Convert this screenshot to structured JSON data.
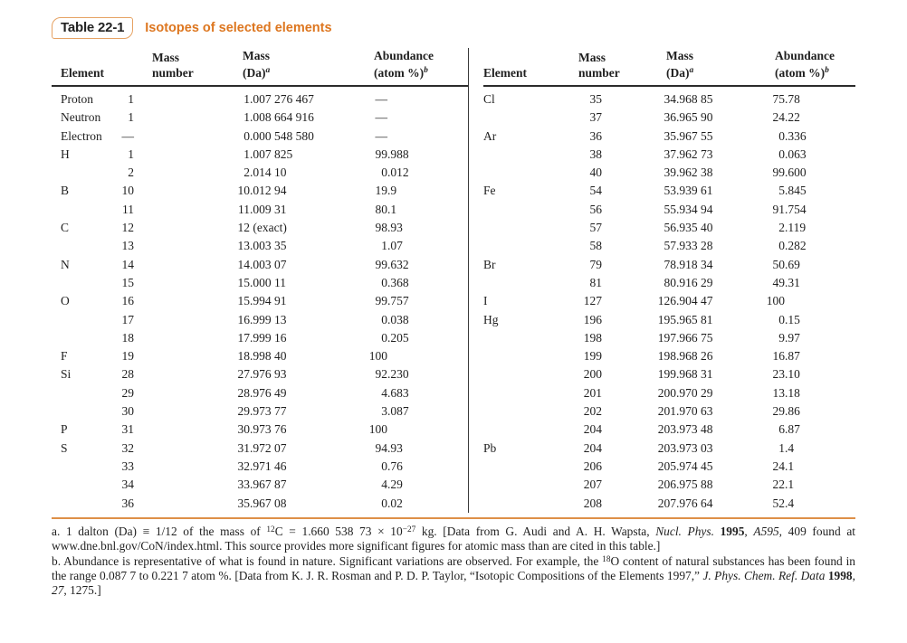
{
  "title": {
    "box_label": "Table 22-1",
    "caption": "Isotopes of selected elements"
  },
  "colors": {
    "caption_orange": "#dd761f",
    "box_border_orange": "#e6a263",
    "footnote_rule_orange": "#de9048",
    "header_rule_black": "#2b2b2b"
  },
  "columns": {
    "element": {
      "line1": "",
      "line2": "Element"
    },
    "mass_number": {
      "line1": "Mass",
      "line2": "number"
    },
    "mass_da": {
      "line1": "Mass",
      "line2": "(Da)",
      "sup": "a"
    },
    "abundance": {
      "line1": "Abundance",
      "line2": "(atom %)",
      "sup": "b"
    }
  },
  "left_rows": [
    [
      "Proton",
      "1",
      "1.007 276 467",
      "—"
    ],
    [
      "Neutron",
      "1",
      "1.008 664 916",
      "—"
    ],
    [
      "Electron",
      "—",
      "0.000 548 580",
      "—"
    ],
    [
      "H",
      "1",
      "1.007 825",
      "99.988"
    ],
    [
      "",
      "2",
      "2.014 10",
      "0.012"
    ],
    [
      "B",
      "10",
      "10.012 94",
      "19.9"
    ],
    [
      "",
      "11",
      "11.009 31",
      "80.1"
    ],
    [
      "C",
      "12",
      "12 (exact)",
      "98.93"
    ],
    [
      "",
      "13",
      "13.003 35",
      "1.07"
    ],
    [
      "N",
      "14",
      "14.003 07",
      "99.632"
    ],
    [
      "",
      "15",
      "15.000 11",
      "0.368"
    ],
    [
      "O",
      "16",
      "15.994 91",
      "99.757"
    ],
    [
      "",
      "17",
      "16.999 13",
      "0.038"
    ],
    [
      "",
      "18",
      "17.999 16",
      "0.205"
    ],
    [
      "F",
      "19",
      "18.998 40",
      "100"
    ],
    [
      "Si",
      "28",
      "27.976 93",
      "92.230"
    ],
    [
      "",
      "29",
      "28.976 49",
      "4.683"
    ],
    [
      "",
      "30",
      "29.973 77",
      "3.087"
    ],
    [
      "P",
      "31",
      "30.973 76",
      "100"
    ],
    [
      "S",
      "32",
      "31.972 07",
      "94.93"
    ],
    [
      "",
      "33",
      "32.971 46",
      "0.76"
    ],
    [
      "",
      "34",
      "33.967 87",
      "4.29"
    ],
    [
      "",
      "36",
      "35.967 08",
      "0.02"
    ]
  ],
  "right_rows": [
    [
      "Cl",
      "35",
      "34.968 85",
      "75.78"
    ],
    [
      "",
      "37",
      "36.965 90",
      "24.22"
    ],
    [
      "Ar",
      "36",
      "35.967 55",
      "0.336"
    ],
    [
      "",
      "38",
      "37.962 73",
      "0.063"
    ],
    [
      "",
      "40",
      "39.962 38",
      "99.600"
    ],
    [
      "Fe",
      "54",
      "53.939 61",
      "5.845"
    ],
    [
      "",
      "56",
      "55.934 94",
      "91.754"
    ],
    [
      "",
      "57",
      "56.935 40",
      "2.119"
    ],
    [
      "",
      "58",
      "57.933 28",
      "0.282"
    ],
    [
      "Br",
      "79",
      "78.918 34",
      "50.69"
    ],
    [
      "",
      "81",
      "80.916 29",
      "49.31"
    ],
    [
      "I",
      "127",
      "126.904 47",
      "100"
    ],
    [
      "Hg",
      "196",
      "195.965 81",
      "0.15"
    ],
    [
      "",
      "198",
      "197.966 75",
      "9.97"
    ],
    [
      "",
      "199",
      "198.968 26",
      "16.87"
    ],
    [
      "",
      "200",
      "199.968 31",
      "23.10"
    ],
    [
      "",
      "201",
      "200.970 29",
      "13.18"
    ],
    [
      "",
      "202",
      "201.970 63",
      "29.86"
    ],
    [
      "",
      "204",
      "203.973 48",
      "6.87"
    ],
    [
      "Pb",
      "204",
      "203.973 03",
      "1.4"
    ],
    [
      "",
      "206",
      "205.974 45",
      "24.1"
    ],
    [
      "",
      "207",
      "206.975 88",
      "22.1"
    ],
    [
      "",
      "208",
      "207.976 64",
      "52.4"
    ]
  ],
  "footnotes": [
    [
      {
        "t": "a. 1 dalton (Da) ≡ 1/12 of the mass of "
      },
      {
        "t": "12",
        "style": "sup"
      },
      {
        "t": "C = 1.660 538 73 × 10"
      },
      {
        "t": "−27",
        "style": "sup"
      },
      {
        "t": " kg. [Data from G. Audi and A. H. Wapsta, "
      },
      {
        "t": "Nucl. Phys.",
        "style": "i"
      },
      {
        "t": " "
      },
      {
        "t": "1995",
        "style": "b"
      },
      {
        "t": ", "
      },
      {
        "t": "A595",
        "style": "i"
      },
      {
        "t": ", 409 found at www.dne.bnl.gov/CoN/index.html. This source provides more significant figures for atomic mass than are cited in this table.]"
      }
    ],
    [
      {
        "t": "b. Abundance is representative of what is found in nature. Significant variations are observed. For example, the "
      },
      {
        "t": "18",
        "style": "sup"
      },
      {
        "t": "O content of natural substances has been found in the range 0.087 7 to 0.221 7 atom %. [Data from K. J. R. Rosman and P. D. P. Taylor, “Isotopic Compositions of the Elements 1997,” "
      },
      {
        "t": "J. Phys. Chem. Ref. Data",
        "style": "i"
      },
      {
        "t": " "
      },
      {
        "t": "1998",
        "style": "b"
      },
      {
        "t": ", "
      },
      {
        "t": "27",
        "style": "i"
      },
      {
        "t": ", 1275.]"
      }
    ]
  ]
}
